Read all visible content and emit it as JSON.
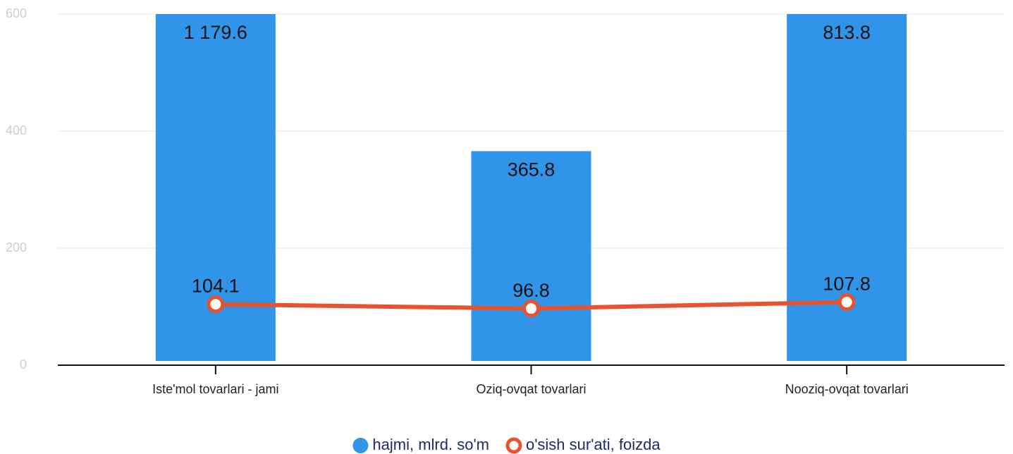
{
  "chart_data": {
    "type": "bar",
    "categories": [
      "Iste'mol tovarlari - jami",
      "Oziq-ovqat tovarlari",
      "Nooziq-ovqat tovarlari"
    ],
    "series": [
      {
        "name": "hajmi, mlrd. so'm",
        "type": "bar",
        "color": "#3094e8",
        "values": [
          1179.6,
          365.8,
          813.8
        ],
        "value_labels": [
          "1 179.6",
          "365.8",
          "813.8"
        ]
      },
      {
        "name": "o'sish sur'ati, foizda",
        "type": "line",
        "color": "#e8532f",
        "values": [
          104.1,
          96.8,
          107.8
        ]
      }
    ],
    "ylim": [
      0,
      600
    ],
    "yticks": [
      0,
      200,
      400,
      600
    ],
    "grid": true,
    "legend": "bottom"
  }
}
